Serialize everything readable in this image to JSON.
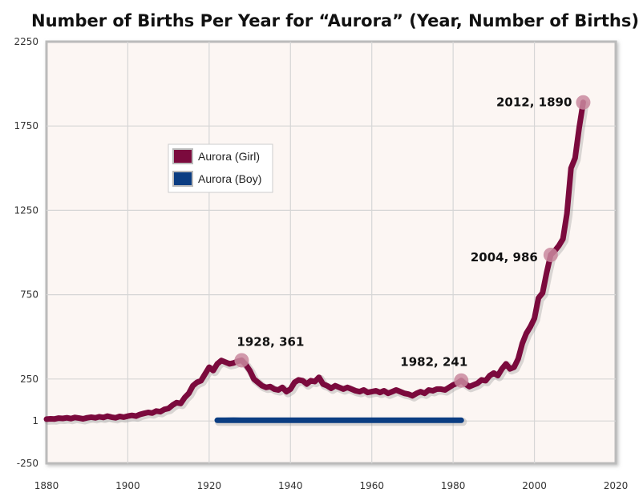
{
  "chart_data": {
    "type": "line",
    "title": "Number of Births Per Year for “Aurora”  (Year, Number of Births)",
    "xlabel": "",
    "ylabel": "",
    "xlim": [
      1880,
      2020
    ],
    "ylim": [
      -250,
      2250
    ],
    "x_ticks": [
      1880,
      1900,
      1920,
      1940,
      1960,
      1980,
      2000,
      2020
    ],
    "y_ticks": [
      {
        "value": -250,
        "label": "-250"
      },
      {
        "value": 1,
        "label": "1"
      },
      {
        "value": 250,
        "label": "250"
      },
      {
        "value": 750,
        "label": "750"
      },
      {
        "value": 1250,
        "label": "1250"
      },
      {
        "value": 1750,
        "label": "1750"
      },
      {
        "value": 2250,
        "label": "2250"
      }
    ],
    "grid": true,
    "legend_placement": "upper-left",
    "series": [
      {
        "name": "Aurora (Girl)",
        "color": "#7b0a3d",
        "points": [
          [
            1880,
            12
          ],
          [
            1881,
            14
          ],
          [
            1882,
            13
          ],
          [
            1883,
            18
          ],
          [
            1884,
            16
          ],
          [
            1885,
            20
          ],
          [
            1886,
            15
          ],
          [
            1887,
            22
          ],
          [
            1888,
            18
          ],
          [
            1889,
            14
          ],
          [
            1890,
            20
          ],
          [
            1891,
            24
          ],
          [
            1892,
            20
          ],
          [
            1893,
            26
          ],
          [
            1894,
            22
          ],
          [
            1895,
            30
          ],
          [
            1896,
            24
          ],
          [
            1897,
            20
          ],
          [
            1898,
            28
          ],
          [
            1899,
            24
          ],
          [
            1900,
            30
          ],
          [
            1901,
            34
          ],
          [
            1902,
            30
          ],
          [
            1903,
            40
          ],
          [
            1904,
            46
          ],
          [
            1905,
            52
          ],
          [
            1906,
            48
          ],
          [
            1907,
            60
          ],
          [
            1908,
            56
          ],
          [
            1909,
            70
          ],
          [
            1910,
            75
          ],
          [
            1911,
            95
          ],
          [
            1912,
            110
          ],
          [
            1913,
            105
          ],
          [
            1914,
            140
          ],
          [
            1915,
            165
          ],
          [
            1916,
            210
          ],
          [
            1917,
            230
          ],
          [
            1918,
            240
          ],
          [
            1919,
            280
          ],
          [
            1920,
            320
          ],
          [
            1921,
            300
          ],
          [
            1922,
            340
          ],
          [
            1923,
            360
          ],
          [
            1924,
            350
          ],
          [
            1925,
            340
          ],
          [
            1926,
            345
          ],
          [
            1927,
            355
          ],
          [
            1928,
            361
          ],
          [
            1929,
            335
          ],
          [
            1930,
            300
          ],
          [
            1931,
            250
          ],
          [
            1932,
            230
          ],
          [
            1933,
            210
          ],
          [
            1934,
            200
          ],
          [
            1935,
            205
          ],
          [
            1936,
            190
          ],
          [
            1937,
            185
          ],
          [
            1938,
            200
          ],
          [
            1939,
            175
          ],
          [
            1940,
            190
          ],
          [
            1941,
            230
          ],
          [
            1942,
            245
          ],
          [
            1943,
            240
          ],
          [
            1944,
            220
          ],
          [
            1945,
            240
          ],
          [
            1946,
            235
          ],
          [
            1947,
            260
          ],
          [
            1948,
            220
          ],
          [
            1949,
            210
          ],
          [
            1950,
            195
          ],
          [
            1951,
            210
          ],
          [
            1952,
            200
          ],
          [
            1953,
            190
          ],
          [
            1954,
            200
          ],
          [
            1955,
            190
          ],
          [
            1956,
            180
          ],
          [
            1957,
            175
          ],
          [
            1958,
            185
          ],
          [
            1959,
            170
          ],
          [
            1960,
            175
          ],
          [
            1961,
            180
          ],
          [
            1962,
            170
          ],
          [
            1963,
            180
          ],
          [
            1964,
            165
          ],
          [
            1965,
            175
          ],
          [
            1966,
            185
          ],
          [
            1967,
            175
          ],
          [
            1968,
            165
          ],
          [
            1969,
            160
          ],
          [
            1970,
            150
          ],
          [
            1971,
            165
          ],
          [
            1972,
            175
          ],
          [
            1973,
            165
          ],
          [
            1974,
            185
          ],
          [
            1975,
            180
          ],
          [
            1976,
            190
          ],
          [
            1977,
            190
          ],
          [
            1978,
            185
          ],
          [
            1979,
            200
          ],
          [
            1980,
            215
          ],
          [
            1981,
            225
          ],
          [
            1982,
            241
          ],
          [
            1983,
            220
          ],
          [
            1984,
            205
          ],
          [
            1985,
            215
          ],
          [
            1986,
            225
          ],
          [
            1987,
            245
          ],
          [
            1988,
            240
          ],
          [
            1989,
            270
          ],
          [
            1990,
            285
          ],
          [
            1991,
            270
          ],
          [
            1992,
            310
          ],
          [
            1993,
            340
          ],
          [
            1994,
            310
          ],
          [
            1995,
            320
          ],
          [
            1996,
            370
          ],
          [
            1997,
            460
          ],
          [
            1998,
            520
          ],
          [
            1999,
            560
          ],
          [
            2000,
            610
          ],
          [
            2001,
            730
          ],
          [
            2002,
            760
          ],
          [
            2003,
            880
          ],
          [
            2004,
            986
          ],
          [
            2005,
            1010
          ],
          [
            2006,
            1040
          ],
          [
            2007,
            1080
          ],
          [
            2008,
            1230
          ],
          [
            2009,
            1500
          ],
          [
            2010,
            1560
          ],
          [
            2011,
            1740
          ],
          [
            2012,
            1890
          ]
        ],
        "annotations": [
          {
            "x": 1928,
            "y": 361,
            "label": "1928, 361"
          },
          {
            "x": 1982,
            "y": 241,
            "label": "1982, 241"
          },
          {
            "x": 2004,
            "y": 986,
            "label": "2004, 986"
          },
          {
            "x": 2012,
            "y": 1890,
            "label": "2012, 1890"
          }
        ]
      },
      {
        "name": "Aurora (Boy)",
        "color": "#0b3d82",
        "points": [
          [
            1922,
            5
          ],
          [
            1924,
            5
          ],
          [
            1926,
            6
          ],
          [
            1928,
            5
          ],
          [
            1930,
            5
          ],
          [
            1935,
            5
          ],
          [
            1940,
            5
          ],
          [
            1945,
            5
          ],
          [
            1950,
            5
          ],
          [
            1955,
            5
          ],
          [
            1960,
            5
          ],
          [
            1965,
            5
          ],
          [
            1970,
            5
          ],
          [
            1975,
            5
          ],
          [
            1980,
            5
          ],
          [
            1982,
            5
          ]
        ]
      }
    ]
  }
}
